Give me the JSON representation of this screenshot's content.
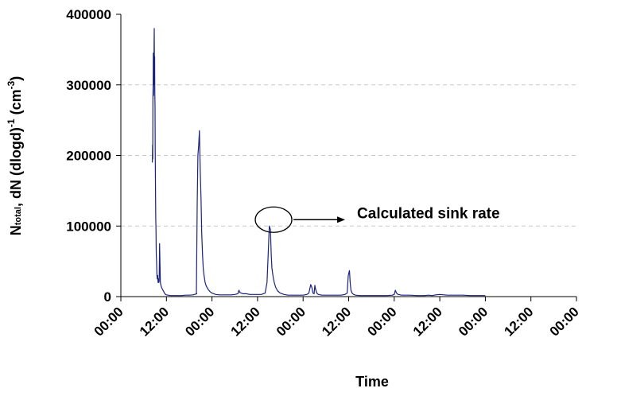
{
  "chart_data": {
    "type": "line",
    "title": "",
    "xlabel": "Time",
    "ylabel": {
      "prefix": "N",
      "prefix_sub": "total",
      "middle": ", dN (dlogd)",
      "sup1": "-1",
      "after": " (cm",
      "sup2": "-3",
      "close": ")"
    },
    "ylim": [
      0,
      400000
    ],
    "yticks": [
      "0",
      "100000",
      "200000",
      "300000",
      "400000"
    ],
    "xlim": [
      0,
      120
    ],
    "xticks": [
      "00:00",
      "12:00",
      "00:00",
      "12:00",
      "00:00",
      "12:00",
      "00:00",
      "12:00",
      "00:00",
      "12:00",
      "00:00"
    ],
    "grid": "horizontal-dashed",
    "legend": "none",
    "series_color": "#1a237e",
    "series": [
      {
        "x": [
          8.3,
          8.35,
          8.4,
          8.45,
          8.5,
          8.55,
          8.6,
          8.65,
          8.7,
          8.75,
          8.8,
          8.85,
          8.9,
          8.95,
          9.0,
          9.05,
          9.1,
          9.15,
          9.2,
          9.25,
          9.3,
          9.35,
          9.4,
          9.45,
          9.5,
          9.6,
          9.7,
          9.8,
          9.9,
          10.0,
          10.1,
          10.2,
          10.4,
          10.6,
          10.8,
          11.0,
          11.2,
          11.4,
          11.5,
          11.6,
          11.8,
          12.0,
          12.5,
          13,
          14,
          15,
          16,
          17,
          18,
          19,
          20,
          19.9,
          20.1,
          20.3,
          20.5,
          20.7,
          20.9,
          21.1,
          21.3,
          21.5,
          21.7,
          21.9,
          22.2,
          22.5,
          23,
          23.5,
          24,
          25,
          26,
          27,
          28,
          29,
          30,
          30.8,
          31.1,
          31.3,
          31.7,
          32.2,
          33,
          34,
          35,
          36,
          37,
          38,
          38.5,
          38.8,
          39.1,
          39.4,
          39.6,
          39.8,
          40.1,
          40.4,
          40.8,
          41.3,
          42,
          43,
          44,
          45,
          46,
          47,
          48,
          49,
          49.5,
          50.0,
          50.3,
          50.6,
          50.9,
          51.1,
          51.3,
          51.6,
          52.0,
          53,
          54,
          55,
          56,
          57,
          58,
          59,
          59.6,
          59.9,
          60.2,
          60.4,
          60.6,
          60.9,
          61.3,
          61.8,
          63,
          64,
          66,
          68,
          70,
          71.5,
          72,
          72.3,
          72.6,
          73,
          74,
          76,
          78,
          80,
          81,
          82,
          83,
          84,
          86,
          88,
          90,
          92,
          94,
          96
        ],
        "y": [
          190000,
          215000,
          195000,
          280000,
          300000,
          345000,
          285000,
          330000,
          310000,
          360000,
          380000,
          300000,
          340000,
          290000,
          270000,
          210000,
          165000,
          135000,
          110000,
          95000,
          70000,
          58000,
          50000,
          40000,
          30000,
          25000,
          30000,
          20000,
          25000,
          20000,
          22000,
          75000,
          20000,
          15000,
          12000,
          10000,
          8000,
          6000,
          5000,
          4000,
          3000,
          2500,
          2000,
          1500,
          1500,
          1500,
          1500,
          2000,
          2000,
          2500,
          4000,
          5000,
          130000,
          200000,
          215000,
          235000,
          180000,
          140000,
          90000,
          60000,
          40000,
          30000,
          20000,
          15000,
          10000,
          7000,
          5000,
          3000,
          2500,
          2500,
          2500,
          2500,
          3000,
          4000,
          9000,
          6000,
          5000,
          4000,
          4000,
          3000,
          3000,
          3000,
          3000,
          5000,
          20000,
          60000,
          100000,
          95000,
          60000,
          40000,
          28000,
          20000,
          13000,
          8000,
          5000,
          3000,
          2000,
          2000,
          2000,
          2000,
          2000,
          3000,
          5000,
          17000,
          13000,
          5000,
          4000,
          16000,
          10000,
          5000,
          3000,
          2000,
          2000,
          2000,
          2000,
          2000,
          2000,
          3000,
          5000,
          30000,
          37000,
          20000,
          9000,
          5000,
          3000,
          2000,
          1500,
          1500,
          1500,
          1500,
          1500,
          2000,
          3000,
          9000,
          5000,
          3000,
          2000,
          2000,
          1500,
          1500,
          2000,
          1500,
          2500,
          3000,
          2000,
          2000,
          2000,
          1500,
          1500,
          1500
        ]
      }
    ],
    "annotations": [
      {
        "text": "Calculated sink rate",
        "x": 39.8,
        "y": 100000
      }
    ]
  }
}
